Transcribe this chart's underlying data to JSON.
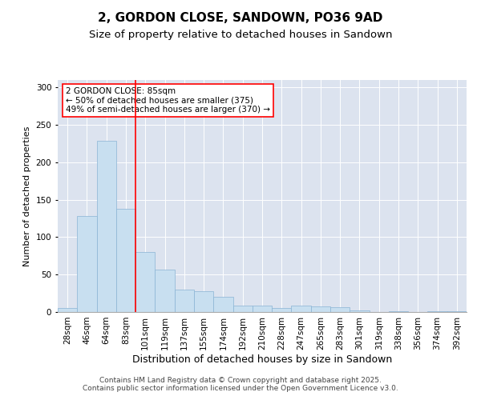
{
  "title1": "2, GORDON CLOSE, SANDOWN, PO36 9AD",
  "title2": "Size of property relative to detached houses in Sandown",
  "xlabel": "Distribution of detached houses by size in Sandown",
  "ylabel": "Number of detached properties",
  "categories": [
    "28sqm",
    "46sqm",
    "64sqm",
    "83sqm",
    "101sqm",
    "119sqm",
    "137sqm",
    "155sqm",
    "174sqm",
    "192sqm",
    "210sqm",
    "228sqm",
    "247sqm",
    "265sqm",
    "283sqm",
    "301sqm",
    "319sqm",
    "338sqm",
    "356sqm",
    "374sqm",
    "392sqm"
  ],
  "values": [
    5,
    128,
    229,
    138,
    80,
    57,
    30,
    28,
    20,
    9,
    9,
    5,
    9,
    7,
    6,
    2,
    0,
    1,
    0,
    1,
    1
  ],
  "bar_color": "#c8dff0",
  "bar_edge_color": "#8ab4d4",
  "vline_color": "red",
  "annotation_text": "2 GORDON CLOSE: 85sqm\n← 50% of detached houses are smaller (375)\n49% of semi-detached houses are larger (370) →",
  "annotation_box_color": "white",
  "annotation_box_edge_color": "red",
  "ylim": [
    0,
    310
  ],
  "yticks": [
    0,
    50,
    100,
    150,
    200,
    250,
    300
  ],
  "background_color": "#dce3ef",
  "footer_text": "Contains HM Land Registry data © Crown copyright and database right 2025.\nContains public sector information licensed under the Open Government Licence v3.0.",
  "title1_fontsize": 11,
  "title2_fontsize": 9.5,
  "xlabel_fontsize": 9,
  "ylabel_fontsize": 8,
  "tick_fontsize": 7.5,
  "annotation_fontsize": 7.5,
  "footer_fontsize": 6.5
}
